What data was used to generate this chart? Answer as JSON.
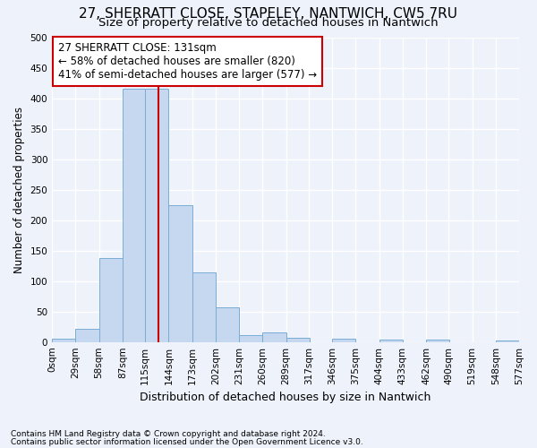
{
  "title_line1": "27, SHERRATT CLOSE, STAPELEY, NANTWICH, CW5 7RU",
  "title_line2": "Size of property relative to detached houses in Nantwich",
  "xlabel": "Distribution of detached houses by size in Nantwich",
  "ylabel": "Number of detached properties",
  "footnote1": "Contains HM Land Registry data © Crown copyright and database right 2024.",
  "footnote2": "Contains public sector information licensed under the Open Government Licence v3.0.",
  "bar_color": "#c5d8f0",
  "bar_edge_color": "#7aadd4",
  "background_color": "#eef2fb",
  "grid_color": "#ffffff",
  "vline_color": "#cc0000",
  "vline_x": 131,
  "annotation_line1": "27 SHERRATT CLOSE: 131sqm",
  "annotation_line2": "← 58% of detached houses are smaller (820)",
  "annotation_line3": "41% of semi-detached houses are larger (577) →",
  "annotation_box_color": "#ffffff",
  "annotation_box_edge": "#cc0000",
  "bin_edges": [
    0,
    29,
    58,
    87,
    115,
    144,
    173,
    202,
    231,
    260,
    289,
    317,
    346,
    375,
    404,
    433,
    462,
    490,
    519,
    548,
    577
  ],
  "bar_heights": [
    5,
    21,
    138,
    415,
    415,
    224,
    114,
    57,
    11,
    15,
    7,
    0,
    5,
    0,
    4,
    0,
    4,
    0,
    0,
    2
  ],
  "ylim": [
    0,
    500
  ],
  "yticks": [
    0,
    50,
    100,
    150,
    200,
    250,
    300,
    350,
    400,
    450,
    500
  ],
  "title_fontsize1": 11,
  "title_fontsize2": 9.5,
  "ylabel_fontsize": 8.5,
  "xlabel_fontsize": 9,
  "tick_fontsize": 7.5,
  "footnote_fontsize": 6.5
}
